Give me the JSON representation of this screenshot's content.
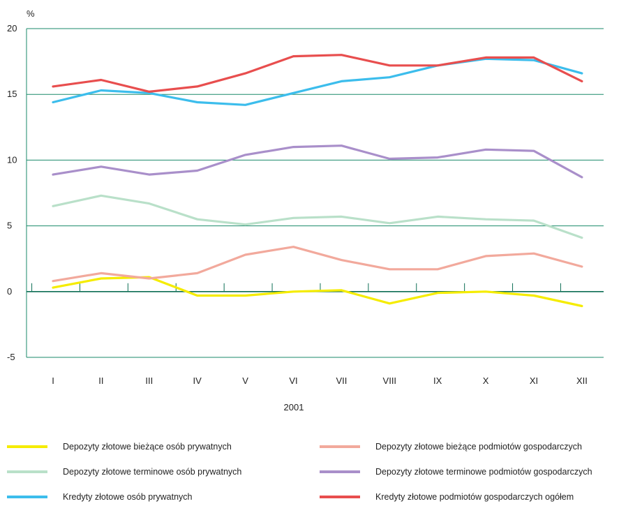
{
  "chart_data": {
    "type": "line",
    "yunit": "%",
    "xlabel": "2001",
    "categories": [
      "I",
      "II",
      "III",
      "IV",
      "V",
      "VI",
      "VII",
      "VIII",
      "IX",
      "X",
      "XI",
      "XII"
    ],
    "ylim": [
      -5,
      20
    ],
    "yticks": [
      -5,
      0,
      5,
      10,
      15,
      20
    ],
    "grid": true,
    "legend_position": "bottom",
    "series": [
      {
        "name": "Depozyty złotowe bieżące osób prywatnych",
        "color": "#f5ec00",
        "values": [
          0.3,
          1.0,
          1.1,
          -0.3,
          -0.3,
          0.0,
          0.1,
          -0.9,
          -0.1,
          0.0,
          -0.3,
          -1.1
        ]
      },
      {
        "name": "Depozyty złotowe bieżące podmiotów gospodarczych",
        "color": "#f2a99c",
        "values": [
          0.8,
          1.4,
          1.0,
          1.4,
          2.8,
          3.4,
          2.4,
          1.7,
          1.7,
          2.7,
          2.9,
          1.9
        ]
      },
      {
        "name": "Depozyty złotowe terminowe osób prywatnych",
        "color": "#b9e0c9",
        "values": [
          6.5,
          7.3,
          6.7,
          5.5,
          5.1,
          5.6,
          5.7,
          5.2,
          5.7,
          5.5,
          5.4,
          4.1
        ]
      },
      {
        "name": "Depozyty złotowe terminowe podmiotów gospodarczych",
        "color": "#a98fca",
        "values": [
          8.9,
          9.5,
          8.9,
          9.2,
          10.4,
          11.0,
          11.1,
          10.1,
          10.2,
          10.8,
          10.7,
          8.7
        ]
      },
      {
        "name": "Kredyty złotowe osób prywatnych",
        "color": "#3cbdec",
        "values": [
          14.4,
          15.3,
          15.1,
          14.4,
          14.2,
          15.1,
          16.0,
          16.3,
          17.2,
          17.7,
          17.6,
          16.6
        ]
      },
      {
        "name": "Kredyty złotowe podmiotów gospodarczych ogółem",
        "color": "#e84e4e",
        "values": [
          15.6,
          16.1,
          15.2,
          15.6,
          16.6,
          17.9,
          18.0,
          17.2,
          17.2,
          17.8,
          17.8,
          16.0
        ]
      }
    ]
  }
}
